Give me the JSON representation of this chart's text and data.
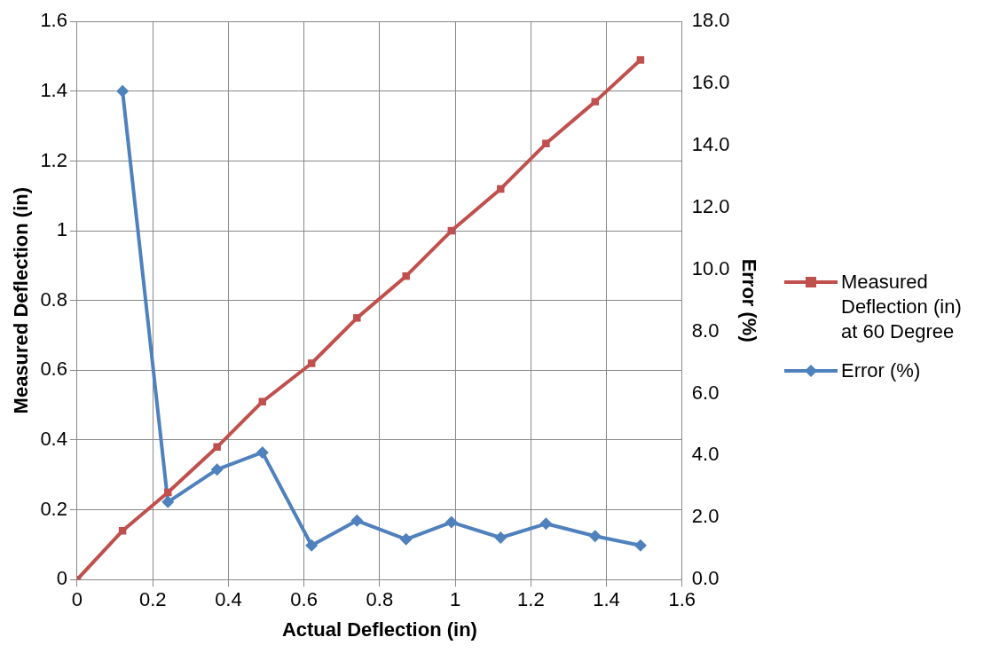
{
  "chart_data": {
    "type": "line",
    "xlabel": "Actual Deflection (in)",
    "ylabel": "Measured Deflection (in)",
    "y2label": "Error (%)",
    "xlim": [
      0,
      1.6
    ],
    "xticks": [
      0,
      0.2,
      0.4,
      0.6,
      0.8,
      1,
      1.2,
      1.4,
      1.6
    ],
    "ylim": [
      0,
      1.6
    ],
    "yticks": [
      0,
      0.2,
      0.4,
      0.6,
      0.8,
      1,
      1.2,
      1.4,
      1.6
    ],
    "y2lim": [
      0,
      18
    ],
    "y2ticks": [
      {
        "value": 0,
        "label": "0.0"
      },
      {
        "value": 2,
        "label": "2.0"
      },
      {
        "value": 4,
        "label": "4.0"
      },
      {
        "value": 6,
        "label": "6.0"
      },
      {
        "value": 8,
        "label": "8.0"
      },
      {
        "value": 10,
        "label": "10.0"
      },
      {
        "value": 12,
        "label": "12.0"
      },
      {
        "value": 14,
        "label": "14.0"
      },
      {
        "value": 16,
        "label": "16.0"
      },
      {
        "value": 18,
        "label": "18.0"
      }
    ],
    "grid": true,
    "legend": "right",
    "series": [
      {
        "name": "Measured Deflection (in) at 60 Degree",
        "color": "#c0504d",
        "marker": "square",
        "x": [
          0,
          0.12,
          0.24,
          0.37,
          0.49,
          0.62,
          0.74,
          0.87,
          0.99,
          1.12,
          1.24,
          1.37,
          1.49
        ],
        "values": [
          0,
          0.14,
          0.25,
          0.38,
          0.51,
          0.62,
          0.75,
          0.87,
          1.0,
          1.12,
          1.25,
          1.37,
          1.49
        ]
      },
      {
        "name": "Error (%)",
        "color": "#4f81bd",
        "marker": "diamond",
        "axis": "y2",
        "x": [
          0.12,
          0.24,
          0.37,
          0.49,
          0.62,
          0.74,
          0.87,
          0.99,
          1.12,
          1.24,
          1.37,
          1.49
        ],
        "values": [
          15.75,
          2.5,
          3.55,
          4.1,
          1.1,
          1.9,
          1.3,
          1.85,
          1.35,
          1.8,
          1.4,
          1.1
        ]
      }
    ]
  }
}
